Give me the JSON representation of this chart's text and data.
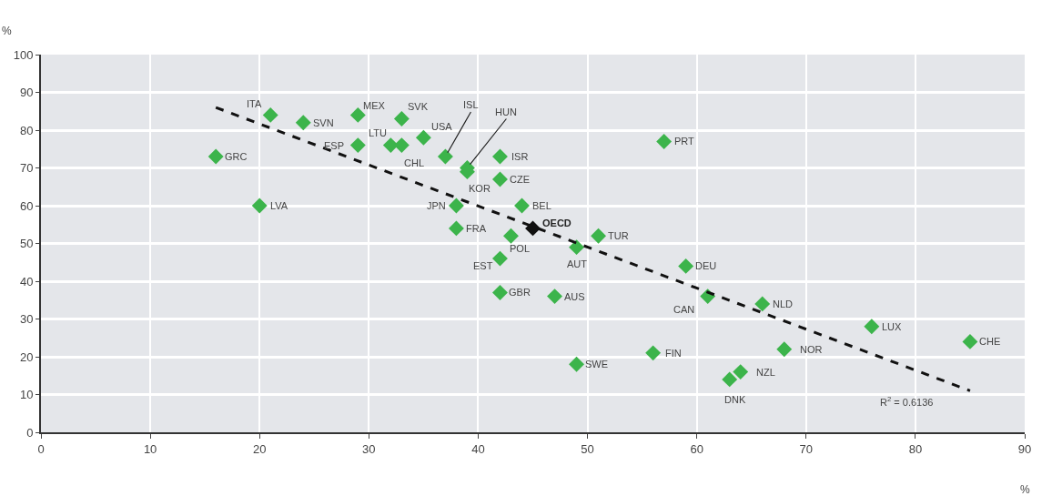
{
  "chart_data": {
    "type": "scatter",
    "xlabel": "%",
    "ylabel": "%",
    "xlim": [
      0,
      90
    ],
    "ylim": [
      0,
      100
    ],
    "xticks": [
      0,
      10,
      20,
      30,
      40,
      50,
      60,
      70,
      80,
      90
    ],
    "yticks": [
      0,
      10,
      20,
      30,
      40,
      50,
      60,
      70,
      80,
      90,
      100
    ],
    "grid": true,
    "marker": "diamond",
    "series": [
      {
        "color": "#3cb44b",
        "x": [
          16,
          21,
          24,
          29,
          29,
          32,
          33,
          33,
          35,
          37,
          39,
          39,
          20,
          38,
          38,
          42,
          42,
          44,
          43,
          42,
          42,
          51,
          49,
          47,
          49,
          56,
          59,
          61,
          66,
          63,
          64,
          68,
          76,
          85,
          57
        ],
        "values": [
          73,
          84,
          82,
          84,
          76,
          76,
          76,
          83,
          78,
          73,
          70,
          69,
          60,
          60,
          54,
          73,
          67,
          60,
          52,
          46,
          37,
          52,
          49,
          36,
          18,
          21,
          44,
          36,
          34,
          14,
          16,
          22,
          28,
          24,
          77
        ]
      },
      {
        "color": "#111111",
        "x": [
          45
        ],
        "values": [
          54
        ]
      },
      {
        "type": "line",
        "marker": "none",
        "color": "#111111",
        "line_style": "dashed",
        "x": [
          16,
          85
        ],
        "values": [
          86,
          11
        ]
      }
    ],
    "annotations": [
      {
        "text": "GRC",
        "x": 16,
        "y": 73
      },
      {
        "text": "ITA",
        "x": 21,
        "y": 84
      },
      {
        "text": "SVN",
        "x": 24,
        "y": 82
      },
      {
        "text": "MEX",
        "x": 29,
        "y": 84
      },
      {
        "text": "ESP",
        "x": 29,
        "y": 76
      },
      {
        "text": "LTU",
        "x": 32,
        "y": 76
      },
      {
        "text": "CHL",
        "x": 33,
        "y": 76
      },
      {
        "text": "SVK",
        "x": 33,
        "y": 83
      },
      {
        "text": "USA",
        "x": 35,
        "y": 78
      },
      {
        "text": "ISL",
        "x": 37,
        "y": 73
      },
      {
        "text": "HUN",
        "x": 39,
        "y": 70
      },
      {
        "text": "KOR",
        "x": 39,
        "y": 69
      },
      {
        "text": "LVA",
        "x": 20,
        "y": 60
      },
      {
        "text": "JPN",
        "x": 38,
        "y": 60
      },
      {
        "text": "FRA",
        "x": 38,
        "y": 54
      },
      {
        "text": "ISR",
        "x": 42,
        "y": 73
      },
      {
        "text": "CZE",
        "x": 42,
        "y": 67
      },
      {
        "text": "BEL",
        "x": 44,
        "y": 60
      },
      {
        "text": "POL",
        "x": 43,
        "y": 52
      },
      {
        "text": "EST",
        "x": 42,
        "y": 46
      },
      {
        "text": "GBR",
        "x": 42,
        "y": 37
      },
      {
        "text": "TUR",
        "x": 51,
        "y": 52
      },
      {
        "text": "AUT",
        "x": 49,
        "y": 49
      },
      {
        "text": "AUS",
        "x": 47,
        "y": 36
      },
      {
        "text": "SWE",
        "x": 49,
        "y": 18
      },
      {
        "text": "FIN",
        "x": 56,
        "y": 21
      },
      {
        "text": "DEU",
        "x": 59,
        "y": 44
      },
      {
        "text": "CAN",
        "x": 61,
        "y": 36
      },
      {
        "text": "NLD",
        "x": 66,
        "y": 34
      },
      {
        "text": "DNK",
        "x": 63,
        "y": 14
      },
      {
        "text": "NZL",
        "x": 64,
        "y": 16
      },
      {
        "text": "NOR",
        "x": 68,
        "y": 22
      },
      {
        "text": "LUX",
        "x": 76,
        "y": 28
      },
      {
        "text": "CHE",
        "x": 85,
        "y": 24
      },
      {
        "text": "PRT",
        "x": 57,
        "y": 77
      },
      {
        "text": "OECD",
        "x": 45,
        "y": 54
      },
      "R$^{2}$ = 0.6136"
    ]
  }
}
